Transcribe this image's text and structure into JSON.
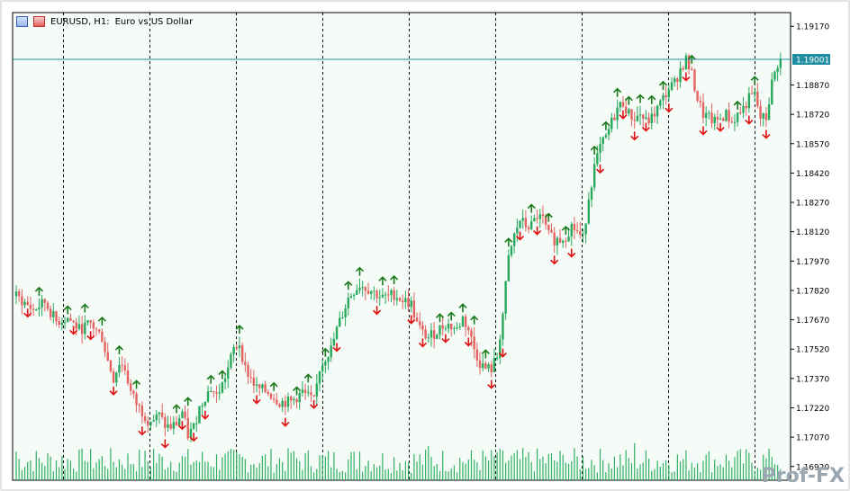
{
  "window": {
    "symbol_label": "EURUSD, H1:",
    "description": "Euro vs US Dollar"
  },
  "colors": {
    "background": "#f5fcf8",
    "bull": "#27a85a",
    "bear": "#e3625f",
    "grid": "#000000",
    "price_line": "#1f8ea0",
    "up_arrow": "#1b7a1b",
    "down_arrow": "#e01010",
    "volume": "#30b060"
  },
  "watermark": "Prof-FX",
  "chart_data": {
    "type": "candlestick",
    "symbol": "EURUSD",
    "timeframe": "H1",
    "ylim": [
      1.1685,
      1.1924
    ],
    "y_ticks": [
      "1.19170",
      "1.19020",
      "1.18870",
      "1.18720",
      "1.18570",
      "1.18420",
      "1.18270",
      "1.18120",
      "1.17970",
      "1.17820",
      "1.17670",
      "1.17520",
      "1.17370",
      "1.17220",
      "1.17070",
      "1.16920"
    ],
    "current_price": "1.19001",
    "vertical_gridlines": 9,
    "close_path": [
      [
        0,
        1.1779
      ],
      [
        6,
        1.1772
      ],
      [
        10,
        1.1776
      ],
      [
        14,
        1.1766
      ],
      [
        18,
        1.1768
      ],
      [
        22,
        1.1762
      ],
      [
        26,
        1.1765
      ],
      [
        30,
        1.1758
      ],
      [
        32,
        1.1746
      ],
      [
        34,
        1.1737
      ],
      [
        36,
        1.1745
      ],
      [
        38,
        1.1742
      ],
      [
        40,
        1.173
      ],
      [
        42,
        1.1724
      ],
      [
        44,
        1.172
      ],
      [
        46,
        1.1716
      ],
      [
        48,
        1.1716
      ],
      [
        50,
        1.1718
      ],
      [
        52,
        1.1713
      ],
      [
        54,
        1.1712
      ],
      [
        56,
        1.1714
      ],
      [
        58,
        1.172
      ],
      [
        60,
        1.1708
      ],
      [
        62,
        1.1712
      ],
      [
        64,
        1.1722
      ],
      [
        66,
        1.1728
      ],
      [
        68,
        1.1732
      ],
      [
        70,
        1.1728
      ],
      [
        72,
        1.1734
      ],
      [
        74,
        1.1742
      ],
      [
        76,
        1.1752
      ],
      [
        78,
        1.1755
      ],
      [
        80,
        1.1742
      ],
      [
        84,
        1.1732
      ],
      [
        88,
        1.173
      ],
      [
        92,
        1.1725
      ],
      [
        96,
        1.1725
      ],
      [
        100,
        1.173
      ],
      [
        104,
        1.1725
      ],
      [
        106,
        1.1742
      ],
      [
        108,
        1.1748
      ],
      [
        110,
        1.1752
      ],
      [
        112,
        1.1762
      ],
      [
        114,
        1.177
      ],
      [
        116,
        1.1778
      ],
      [
        118,
        1.1782
      ],
      [
        120,
        1.1785
      ],
      [
        124,
        1.1782
      ],
      [
        128,
        1.1778
      ],
      [
        132,
        1.178
      ],
      [
        134,
        1.1778
      ],
      [
        138,
        1.1775
      ],
      [
        140,
        1.1765
      ],
      [
        142,
        1.176
      ],
      [
        144,
        1.1758
      ],
      [
        146,
        1.176
      ],
      [
        150,
        1.1765
      ],
      [
        154,
        1.1762
      ],
      [
        156,
        1.1768
      ],
      [
        158,
        1.1762
      ],
      [
        160,
        1.1752
      ],
      [
        162,
        1.1745
      ],
      [
        164,
        1.1742
      ],
      [
        166,
        1.1742
      ],
      [
        168,
        1.1748
      ],
      [
        170,
        1.177
      ],
      [
        172,
        1.1798
      ],
      [
        174,
        1.181
      ],
      [
        176,
        1.1818
      ],
      [
        178,
        1.1815
      ],
      [
        180,
        1.1815
      ],
      [
        182,
        1.182
      ],
      [
        184,
        1.1818
      ],
      [
        186,
        1.181
      ],
      [
        188,
        1.1808
      ],
      [
        190,
        1.1808
      ],
      [
        192,
        1.181
      ],
      [
        194,
        1.1815
      ],
      [
        196,
        1.1812
      ],
      [
        198,
        1.1808
      ],
      [
        200,
        1.183
      ],
      [
        202,
        1.1845
      ],
      [
        204,
        1.1855
      ],
      [
        206,
        1.186
      ],
      [
        208,
        1.1868
      ],
      [
        210,
        1.1875
      ],
      [
        212,
        1.1878
      ],
      [
        214,
        1.1872
      ],
      [
        216,
        1.187
      ],
      [
        218,
        1.1872
      ],
      [
        220,
        1.1868
      ],
      [
        222,
        1.187
      ],
      [
        224,
        1.1875
      ],
      [
        226,
        1.188
      ],
      [
        228,
        1.1885
      ],
      [
        230,
        1.1888
      ],
      [
        232,
        1.1895
      ],
      [
        234,
        1.19
      ],
      [
        236,
        1.1892
      ],
      [
        238,
        1.188
      ],
      [
        240,
        1.1872
      ],
      [
        242,
        1.187
      ],
      [
        244,
        1.1868
      ],
      [
        246,
        1.187
      ],
      [
        248,
        1.1872
      ],
      [
        250,
        1.1868
      ],
      [
        252,
        1.1872
      ],
      [
        254,
        1.1875
      ],
      [
        256,
        1.188
      ],
      [
        258,
        1.1882
      ],
      [
        260,
        1.187
      ],
      [
        262,
        1.187
      ],
      [
        264,
        1.1888
      ],
      [
        266,
        1.1898
      ],
      [
        268,
        1.1901
      ]
    ],
    "total_bars": 268,
    "up_arrow_bars": [
      8,
      18,
      24,
      30,
      36,
      42,
      56,
      60,
      68,
      72,
      78,
      90,
      98,
      102,
      108,
      116,
      120,
      128,
      132,
      148,
      152,
      156,
      160,
      164,
      172,
      180,
      186,
      192,
      202,
      206,
      210,
      214,
      218,
      222,
      226,
      236,
      252,
      258
    ],
    "down_arrow_bars": [
      4,
      20,
      26,
      34,
      44,
      52,
      58,
      62,
      66,
      84,
      94,
      104,
      112,
      126,
      138,
      142,
      150,
      158,
      166,
      170,
      176,
      182,
      188,
      194,
      204,
      212,
      216,
      220,
      228,
      234,
      240,
      246,
      256,
      262
    ]
  }
}
